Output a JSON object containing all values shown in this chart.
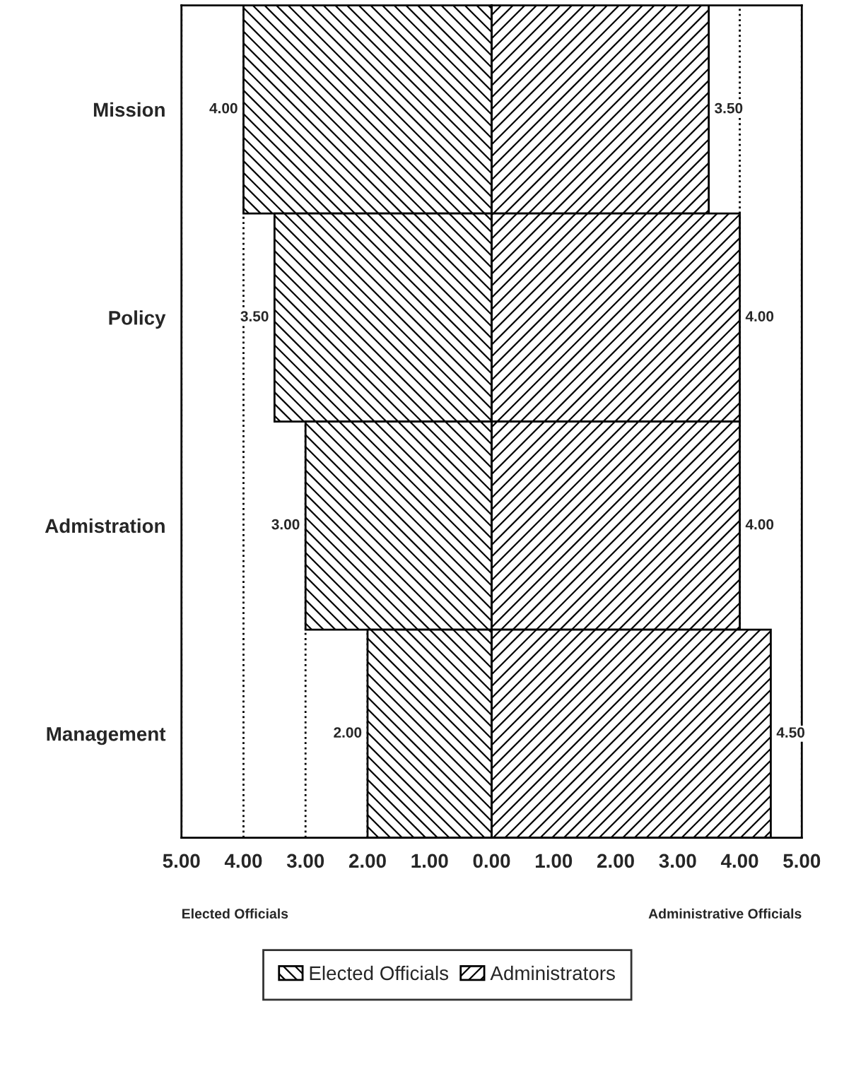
{
  "chart_data": [
    {
      "type": "bar",
      "orientation": "horizontal",
      "categories": [
        "Mission",
        "Policy",
        "Admistration",
        "Management"
      ],
      "series": [
        {
          "name": "Elected Officials",
          "color": "#000000",
          "values": [
            4.0,
            3.5,
            3.0,
            2.0
          ],
          "value_labels": [
            "4.00",
            "3.50",
            "3.00",
            "2.00"
          ]
        }
      ],
      "xlim": [
        5,
        0
      ],
      "xticks": [
        {
          "value": 5,
          "label": "5.00"
        },
        {
          "value": 4,
          "label": "4.00"
        },
        {
          "value": 3,
          "label": "3.00"
        },
        {
          "value": 2,
          "label": "2.00"
        },
        {
          "value": 1,
          "label": "1.00"
        },
        {
          "value": 0,
          "label": null
        }
      ],
      "grid": "x",
      "line_style": "dotted",
      "legend": "bottom",
      "annotations": [
        "Elected Officials"
      ]
    },
    {
      "type": "bar",
      "orientation": "horizontal",
      "categories": [
        null,
        null,
        null,
        null
      ],
      "series": [
        {
          "name": "Administrators",
          "color": "#000000",
          "values": [
            3.5,
            4.0,
            4.0,
            4.5
          ],
          "value_labels": [
            "3.50",
            "4.00",
            "4.00",
            "4.50"
          ]
        }
      ],
      "xlim": [
        0,
        5
      ],
      "xticks": [
        {
          "value": 0,
          "label": "0.00"
        },
        {
          "value": 1,
          "label": "1.00"
        },
        {
          "value": 2,
          "label": "2.00"
        },
        {
          "value": 3,
          "label": "3.00"
        },
        {
          "value": 4,
          "label": "4.00"
        },
        {
          "value": 5,
          "label": "5.00"
        }
      ],
      "tick_labels": "x",
      "grid": "x",
      "line_style": "dotted",
      "legend": "bottom",
      "annotations": [
        "Administrative Officials"
      ]
    }
  ]
}
